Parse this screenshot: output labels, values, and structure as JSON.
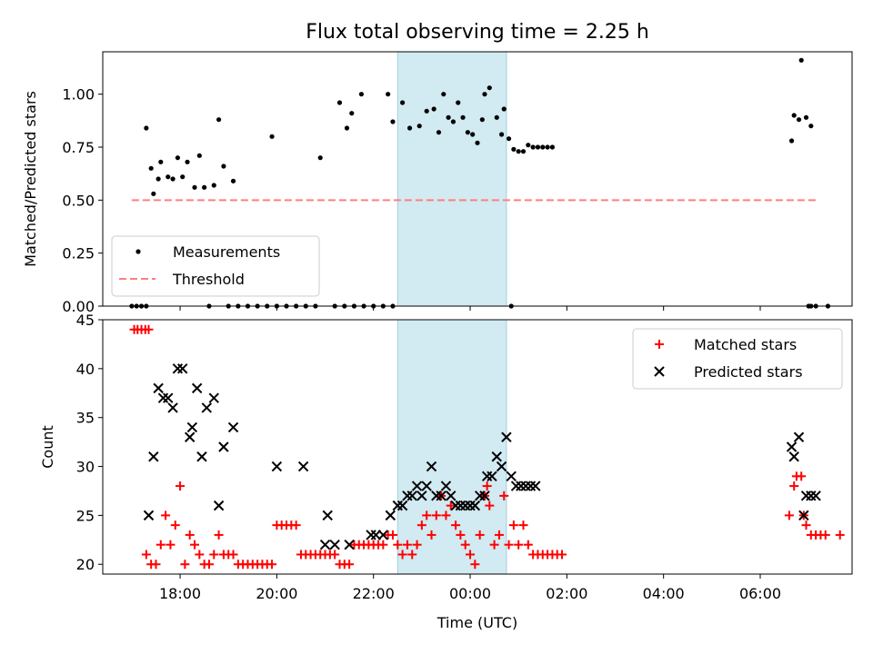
{
  "title": "Flux total observing time = 2.25 h",
  "chart_data": [
    {
      "type": "scatter",
      "panel": "top",
      "ylabel": "Matched/Predicted stars",
      "xlabel": "",
      "xlim": [
        16.4,
        31.9
      ],
      "ylim": [
        0,
        1.2
      ],
      "yticks": [
        0.0,
        0.25,
        0.5,
        0.75,
        1.0
      ],
      "ytick_labels": [
        "0.00",
        "0.25",
        "0.50",
        "0.75",
        "1.00"
      ],
      "shaded_span": {
        "x": [
          22.5,
          24.75
        ],
        "color": "#add8e6"
      },
      "legend": {
        "location": "lower-left",
        "entries": [
          "Measurements",
          "Threshold"
        ]
      },
      "series": [
        {
          "name": "Measurements",
          "marker": "dot",
          "color": "#000000",
          "points": [
            [
              17.0,
              0
            ],
            [
              17.1,
              0
            ],
            [
              17.2,
              0
            ],
            [
              17.3,
              0
            ],
            [
              18.6,
              0
            ],
            [
              19.0,
              0
            ],
            [
              19.2,
              0
            ],
            [
              19.4,
              0
            ],
            [
              19.6,
              0
            ],
            [
              19.8,
              0
            ],
            [
              20.0,
              0
            ],
            [
              20.2,
              0
            ],
            [
              20.4,
              0
            ],
            [
              20.6,
              0
            ],
            [
              20.8,
              0
            ],
            [
              21.2,
              0
            ],
            [
              21.4,
              0
            ],
            [
              21.6,
              0
            ],
            [
              21.8,
              0
            ],
            [
              22.0,
              0
            ],
            [
              22.2,
              0
            ],
            [
              22.4,
              0
            ],
            [
              24.85,
              0
            ],
            [
              31.0,
              0
            ],
            [
              31.05,
              0
            ],
            [
              31.15,
              0
            ],
            [
              31.4,
              0
            ],
            [
              17.3,
              0.84
            ],
            [
              17.4,
              0.65
            ],
            [
              17.45,
              0.53
            ],
            [
              17.55,
              0.6
            ],
            [
              17.6,
              0.68
            ],
            [
              17.75,
              0.61
            ],
            [
              17.85,
              0.6
            ],
            [
              17.95,
              0.7
            ],
            [
              18.05,
              0.61
            ],
            [
              18.15,
              0.68
            ],
            [
              18.3,
              0.56
            ],
            [
              18.4,
              0.71
            ],
            [
              18.5,
              0.56
            ],
            [
              18.7,
              0.57
            ],
            [
              18.8,
              0.88
            ],
            [
              18.9,
              0.66
            ],
            [
              19.1,
              0.59
            ],
            [
              19.9,
              0.8
            ],
            [
              20.9,
              0.7
            ],
            [
              21.3,
              0.96
            ],
            [
              21.45,
              0.84
            ],
            [
              21.55,
              0.91
            ],
            [
              21.75,
              1.0
            ],
            [
              22.3,
              1.0
            ],
            [
              22.4,
              0.87
            ],
            [
              22.6,
              0.96
            ],
            [
              22.75,
              0.84
            ],
            [
              22.95,
              0.85
            ],
            [
              23.1,
              0.92
            ],
            [
              23.25,
              0.93
            ],
            [
              23.35,
              0.82
            ],
            [
              23.45,
              1.0
            ],
            [
              23.55,
              0.89
            ],
            [
              23.65,
              0.87
            ],
            [
              23.75,
              0.96
            ],
            [
              23.85,
              0.89
            ],
            [
              23.95,
              0.82
            ],
            [
              24.05,
              0.81
            ],
            [
              24.15,
              0.77
            ],
            [
              24.25,
              0.88
            ],
            [
              24.3,
              1.0
            ],
            [
              24.4,
              1.03
            ],
            [
              24.55,
              0.89
            ],
            [
              24.65,
              0.81
            ],
            [
              24.7,
              0.93
            ],
            [
              24.8,
              0.79
            ],
            [
              24.9,
              0.74
            ],
            [
              25.0,
              0.73
            ],
            [
              25.1,
              0.73
            ],
            [
              25.2,
              0.76
            ],
            [
              25.3,
              0.75
            ],
            [
              25.4,
              0.75
            ],
            [
              25.5,
              0.75
            ],
            [
              25.6,
              0.75
            ],
            [
              25.7,
              0.75
            ],
            [
              30.65,
              0.78
            ],
            [
              30.7,
              0.9
            ],
            [
              30.8,
              0.88
            ],
            [
              30.85,
              1.16
            ],
            [
              30.95,
              0.89
            ],
            [
              31.05,
              0.85
            ]
          ]
        },
        {
          "name": "Threshold",
          "type": "line",
          "style": "dashed",
          "color": "#ff7f7f",
          "points": [
            [
              17.0,
              0.5
            ],
            [
              31.2,
              0.5
            ]
          ]
        }
      ]
    },
    {
      "type": "scatter",
      "panel": "bottom",
      "ylabel": "Count",
      "xlabel": "Time (UTC)",
      "xlim": [
        16.4,
        31.9
      ],
      "ylim": [
        19,
        45
      ],
      "yticks": [
        20,
        25,
        30,
        35,
        40,
        45
      ],
      "ytick_labels": [
        "20",
        "25",
        "30",
        "35",
        "40",
        "45"
      ],
      "xticks": [
        18,
        20,
        22,
        24,
        26,
        28,
        30
      ],
      "xtick_labels": [
        "18:00",
        "20:00",
        "22:00",
        "00:00",
        "02:00",
        "04:00",
        "06:00"
      ],
      "shaded_span": {
        "x": [
          22.5,
          24.75
        ],
        "color": "#add8e6"
      },
      "legend": {
        "location": "top-right",
        "entries": [
          "Matched stars",
          "Predicted stars"
        ]
      },
      "series": [
        {
          "name": "Matched stars",
          "marker": "plus",
          "color": "#ff0000",
          "points": [
            [
              17.05,
              44
            ],
            [
              17.12,
              44
            ],
            [
              17.2,
              44
            ],
            [
              17.28,
              44
            ],
            [
              17.35,
              44
            ],
            [
              17.3,
              21
            ],
            [
              17.4,
              20
            ],
            [
              17.5,
              20
            ],
            [
              17.6,
              22
            ],
            [
              17.7,
              25
            ],
            [
              17.8,
              22
            ],
            [
              17.9,
              24
            ],
            [
              18.0,
              28
            ],
            [
              18.1,
              20
            ],
            [
              18.2,
              23
            ],
            [
              18.3,
              22
            ],
            [
              18.4,
              21
            ],
            [
              18.5,
              20
            ],
            [
              18.6,
              20
            ],
            [
              18.7,
              21
            ],
            [
              18.8,
              23
            ],
            [
              18.9,
              21
            ],
            [
              19.0,
              21
            ],
            [
              19.1,
              21
            ],
            [
              19.2,
              20
            ],
            [
              19.3,
              20
            ],
            [
              19.4,
              20
            ],
            [
              19.5,
              20
            ],
            [
              19.6,
              20
            ],
            [
              19.7,
              20
            ],
            [
              19.8,
              20
            ],
            [
              19.9,
              20
            ],
            [
              20.0,
              24
            ],
            [
              20.1,
              24
            ],
            [
              20.2,
              24
            ],
            [
              20.3,
              24
            ],
            [
              20.4,
              24
            ],
            [
              20.5,
              21
            ],
            [
              20.6,
              21
            ],
            [
              20.7,
              21
            ],
            [
              20.8,
              21
            ],
            [
              20.9,
              21
            ],
            [
              21.0,
              21
            ],
            [
              21.1,
              21
            ],
            [
              21.2,
              21
            ],
            [
              21.3,
              20
            ],
            [
              21.4,
              20
            ],
            [
              21.5,
              20
            ],
            [
              21.6,
              22
            ],
            [
              21.7,
              22
            ],
            [
              21.8,
              22
            ],
            [
              21.9,
              22
            ],
            [
              22.0,
              22
            ],
            [
              22.1,
              22
            ],
            [
              22.2,
              22
            ],
            [
              22.3,
              23
            ],
            [
              22.4,
              23
            ],
            [
              22.5,
              22
            ],
            [
              22.6,
              21
            ],
            [
              22.7,
              22
            ],
            [
              22.8,
              21
            ],
            [
              22.9,
              22
            ],
            [
              23.0,
              24
            ],
            [
              23.1,
              25
            ],
            [
              23.2,
              23
            ],
            [
              23.3,
              25
            ],
            [
              23.4,
              27
            ],
            [
              23.5,
              25
            ],
            [
              23.6,
              26
            ],
            [
              23.7,
              24
            ],
            [
              23.8,
              23
            ],
            [
              23.9,
              22
            ],
            [
              24.0,
              21
            ],
            [
              24.1,
              20
            ],
            [
              24.2,
              23
            ],
            [
              24.3,
              27
            ],
            [
              24.35,
              28
            ],
            [
              24.4,
              26
            ],
            [
              24.5,
              22
            ],
            [
              24.6,
              23
            ],
            [
              24.7,
              27
            ],
            [
              24.8,
              22
            ],
            [
              24.9,
              24
            ],
            [
              25.0,
              22
            ],
            [
              25.1,
              24
            ],
            [
              25.2,
              22
            ],
            [
              25.3,
              21
            ],
            [
              25.4,
              21
            ],
            [
              25.5,
              21
            ],
            [
              25.6,
              21
            ],
            [
              25.7,
              21
            ],
            [
              25.8,
              21
            ],
            [
              25.9,
              21
            ],
            [
              30.6,
              25
            ],
            [
              30.7,
              28
            ],
            [
              30.75,
              29
            ],
            [
              30.85,
              29
            ],
            [
              30.9,
              25
            ],
            [
              30.95,
              24
            ],
            [
              31.05,
              23
            ],
            [
              31.15,
              23
            ],
            [
              31.25,
              23
            ],
            [
              31.35,
              23
            ],
            [
              31.65,
              23
            ]
          ]
        },
        {
          "name": "Predicted stars",
          "marker": "x",
          "color": "#000000",
          "points": [
            [
              17.35,
              25
            ],
            [
              17.45,
              31
            ],
            [
              17.55,
              38
            ],
            [
              17.65,
              37
            ],
            [
              17.75,
              37
            ],
            [
              17.85,
              36
            ],
            [
              17.95,
              40
            ],
            [
              18.05,
              40
            ],
            [
              18.2,
              33
            ],
            [
              18.25,
              34
            ],
            [
              18.35,
              38
            ],
            [
              18.45,
              31
            ],
            [
              18.55,
              36
            ],
            [
              18.7,
              37
            ],
            [
              18.8,
              26
            ],
            [
              18.9,
              32
            ],
            [
              19.1,
              34
            ],
            [
              20.0,
              30
            ],
            [
              20.55,
              30
            ],
            [
              21.0,
              22
            ],
            [
              21.05,
              25
            ],
            [
              21.2,
              22
            ],
            [
              21.5,
              22
            ],
            [
              21.95,
              23
            ],
            [
              22.05,
              23
            ],
            [
              22.2,
              23
            ],
            [
              22.35,
              25
            ],
            [
              22.5,
              26
            ],
            [
              22.6,
              26
            ],
            [
              22.7,
              27
            ],
            [
              22.8,
              27
            ],
            [
              22.9,
              28
            ],
            [
              23.0,
              27
            ],
            [
              23.1,
              28
            ],
            [
              23.2,
              30
            ],
            [
              23.3,
              27
            ],
            [
              23.4,
              27
            ],
            [
              23.5,
              28
            ],
            [
              23.6,
              27
            ],
            [
              23.7,
              26
            ],
            [
              23.8,
              26
            ],
            [
              23.9,
              26
            ],
            [
              24.0,
              26
            ],
            [
              24.1,
              26
            ],
            [
              24.2,
              27
            ],
            [
              24.3,
              27
            ],
            [
              24.35,
              29
            ],
            [
              24.45,
              29
            ],
            [
              24.55,
              31
            ],
            [
              24.65,
              30
            ],
            [
              24.75,
              33
            ],
            [
              24.85,
              29
            ],
            [
              24.95,
              28
            ],
            [
              25.05,
              28
            ],
            [
              25.15,
              28
            ],
            [
              25.25,
              28
            ],
            [
              25.35,
              28
            ],
            [
              30.65,
              32
            ],
            [
              30.7,
              31
            ],
            [
              30.8,
              33
            ],
            [
              30.9,
              25
            ],
            [
              30.95,
              27
            ],
            [
              31.05,
              27
            ],
            [
              31.15,
              27
            ]
          ]
        }
      ]
    }
  ]
}
